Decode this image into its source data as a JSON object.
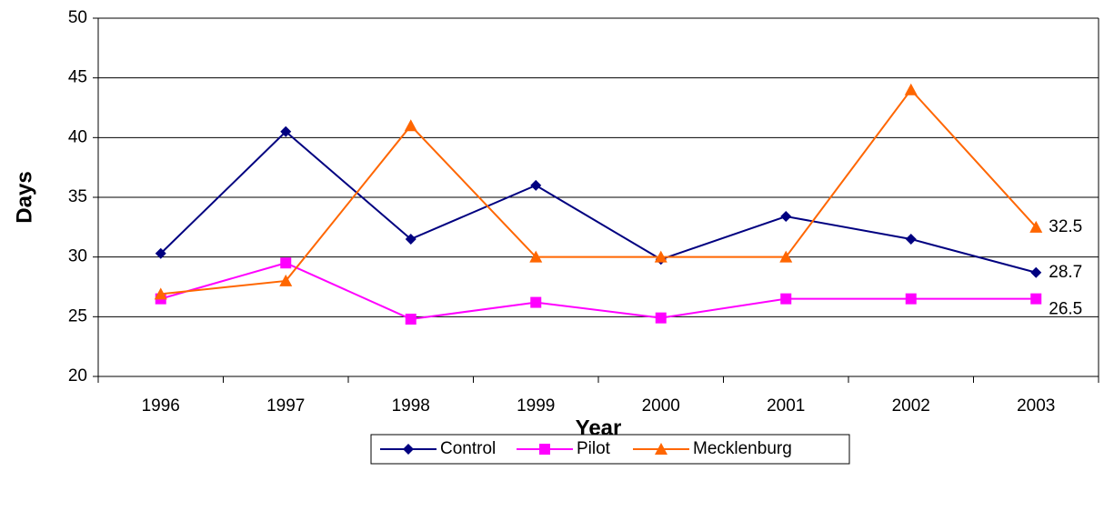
{
  "chart_data": {
    "type": "line",
    "x_label": "Year",
    "y_label": "Days",
    "categories": [
      "1996",
      "1997",
      "1998",
      "1999",
      "2000",
      "2001",
      "2002",
      "2003"
    ],
    "series": [
      {
        "name": "Control",
        "color": "#000080",
        "marker": "diamond",
        "values": [
          30.3,
          40.5,
          31.5,
          36,
          29.8,
          33.4,
          31.5,
          28.7
        ]
      },
      {
        "name": "Pilot",
        "color": "#ff00ff",
        "marker": "square",
        "values": [
          26.5,
          29.5,
          24.8,
          26.2,
          24.9,
          26.5,
          26.5,
          26.5
        ]
      },
      {
        "name": "Mecklenburg",
        "color": "#ff6600",
        "marker": "triangle",
        "values": [
          26.9,
          28,
          41,
          30,
          30,
          30,
          44,
          32.5
        ]
      }
    ],
    "data_labels": "last",
    "ylim": [
      20,
      50
    ],
    "yticks": [
      20,
      25,
      30,
      35,
      40,
      45,
      50
    ],
    "grid": true,
    "legend": "bottom"
  }
}
